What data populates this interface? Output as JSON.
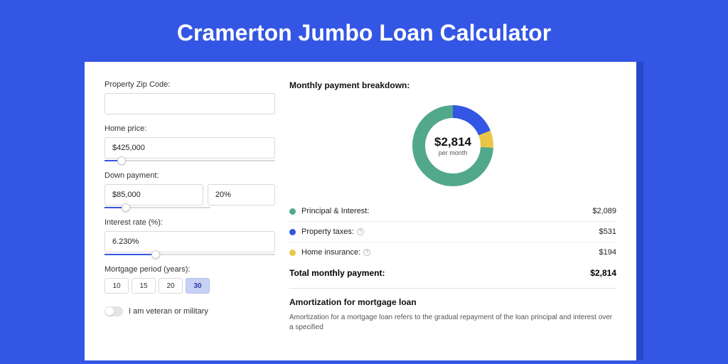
{
  "page_title": "Cramerton Jumbo Loan Calculator",
  "form": {
    "zip": {
      "label": "Property Zip Code:",
      "value": ""
    },
    "home_price": {
      "label": "Home price:",
      "value": "$425,000",
      "slider_pct": 10
    },
    "down_payment": {
      "label": "Down payment:",
      "amount": "$85,000",
      "pct": "20%",
      "slider_pct": 20
    },
    "interest_rate": {
      "label": "Interest rate (%):",
      "value": "6.230%",
      "slider_pct": 30
    },
    "mortgage_period": {
      "label": "Mortgage period (years):",
      "options": [
        "10",
        "15",
        "20",
        "30"
      ],
      "selected": "30"
    },
    "veteran": {
      "label": "I am veteran or military",
      "on": false
    }
  },
  "breakdown": {
    "title": "Monthly payment breakdown:",
    "donut": {
      "amount": "$2,814",
      "sub": "per month",
      "slices": [
        {
          "label": "Principal & Interest:",
          "value": "$2,089",
          "num": 2089,
          "color": "#52a88a",
          "info": false
        },
        {
          "label": "Property taxes:",
          "value": "$531",
          "num": 531,
          "color": "#3356e4",
          "info": true
        },
        {
          "label": "Home insurance:",
          "value": "$194",
          "num": 194,
          "color": "#eac547",
          "info": true
        }
      ],
      "background_color": "#ffffff",
      "stroke_width": 18
    },
    "total_label": "Total monthly payment:",
    "total_value": "$2,814"
  },
  "amortization": {
    "title": "Amortization for mortgage loan",
    "text": "Amortization for a mortgage loan refers to the gradual repayment of the loan principal and interest over a specified"
  }
}
